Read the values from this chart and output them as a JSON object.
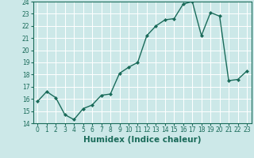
{
  "xlabel": "Humidex (Indice chaleur)",
  "x": [
    0,
    1,
    2,
    3,
    4,
    5,
    6,
    7,
    8,
    9,
    10,
    11,
    12,
    13,
    14,
    15,
    16,
    17,
    18,
    19,
    20,
    21,
    22,
    23
  ],
  "y": [
    15.8,
    16.6,
    16.1,
    14.7,
    14.3,
    15.2,
    15.5,
    16.3,
    16.4,
    18.1,
    18.6,
    19.0,
    21.2,
    22.0,
    22.5,
    22.6,
    23.8,
    24.0,
    21.2,
    23.1,
    22.8,
    17.5,
    17.6,
    18.3
  ],
  "line_color": "#1a6b5a",
  "marker": "D",
  "marker_size": 2,
  "bg_color": "#cce8e8",
  "grid_color": "#ffffff",
  "ylim": [
    14,
    24
  ],
  "xlim_min": -0.5,
  "xlim_max": 23.5,
  "yticks": [
    14,
    15,
    16,
    17,
    18,
    19,
    20,
    21,
    22,
    23,
    24
  ],
  "xticks": [
    0,
    1,
    2,
    3,
    4,
    5,
    6,
    7,
    8,
    9,
    10,
    11,
    12,
    13,
    14,
    15,
    16,
    17,
    18,
    19,
    20,
    21,
    22,
    23
  ],
  "tick_fontsize": 5.5,
  "xlabel_fontsize": 7.5,
  "linewidth": 1.0
}
